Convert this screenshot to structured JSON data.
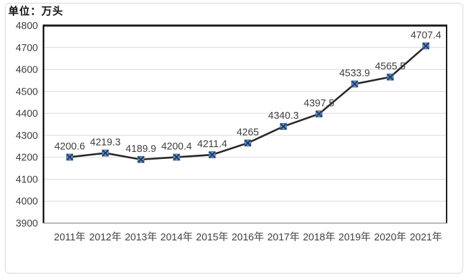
{
  "chart": {
    "unit_label": "单位：万头"
  },
  "chart_data": {
    "type": "line",
    "title": "",
    "unit": "万头",
    "categories": [
      "2011年",
      "2012年",
      "2013年",
      "2014年",
      "2015年",
      "2016年",
      "2017年",
      "2018年",
      "2019年",
      "2020年",
      "2021年"
    ],
    "values": [
      4200.6,
      4219.3,
      4189.9,
      4200.4,
      4211.4,
      4265,
      4340.3,
      4397.5,
      4533.9,
      4565.5,
      4707.4
    ],
    "point_labels": [
      "4200.6",
      "4219.3",
      "4189.9",
      "4200.4",
      "4211.4",
      "4265",
      "4340.3",
      "4397.5",
      "4533.9",
      "4565.5",
      "4707.4"
    ],
    "ylim": [
      3900,
      4800
    ],
    "ytick_step": 100,
    "grid": true,
    "legend": "none",
    "marker_shape": "square-with-x",
    "colors": {
      "line": "#262626",
      "marker_fill": "#6f96c6",
      "marker_edge": "#41719c",
      "marker_cross": "#1f3864",
      "grid": "#d9d9d9",
      "axis": "#1a1a1a",
      "x_axis_line": "#8c8c8c",
      "tick_label": "#404040",
      "data_label": "#3f3f3f",
      "frame_border": "#d9d9d9"
    }
  }
}
